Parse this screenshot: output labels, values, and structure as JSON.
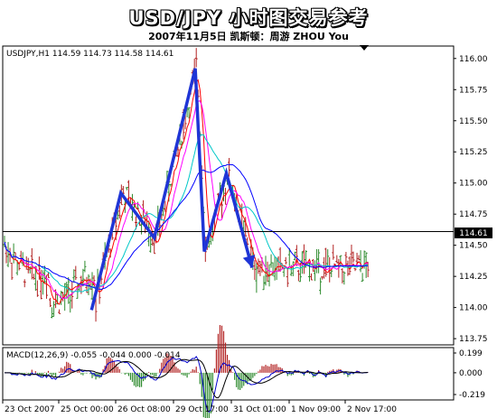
{
  "header": {
    "title": "USD/JPY 小时图交易参考",
    "subtitle": "2007年11月5日   凯斯顿：周游 ZHOU You"
  },
  "chart_data": {
    "type": "candlestick",
    "symbol_line": "USDJPY,H1  114.59 114.73 114.58 114.61",
    "current_price_label": "114.61",
    "current_price": 114.61,
    "ylim": [
      113.7,
      116.1
    ],
    "y_ticks": [
      "116.00",
      "115.75",
      "115.50",
      "115.25",
      "115.00",
      "114.75",
      "114.50",
      "114.25",
      "114.00",
      "113.75"
    ],
    "x_ticks": [
      "23 Oct 2007",
      "25 Oct 00:00",
      "26 Oct 08:00",
      "29 Oct 17:00",
      "31 Oct 01:00",
      "1 Nov 09:00",
      "2 Nov 17:00"
    ],
    "trend_arrow_path": [
      [
        0.197,
        113.98
      ],
      [
        0.262,
        114.92
      ],
      [
        0.336,
        114.56
      ],
      [
        0.427,
        115.92
      ],
      [
        0.447,
        114.45
      ],
      [
        0.496,
        115.08
      ],
      [
        0.553,
        114.32
      ]
    ],
    "macd": {
      "label": "MACD(12,26,9) -0.055 -0.044 0.000 -0.014",
      "y_ticks": [
        "0.199",
        "0.000",
        "-0.219"
      ]
    },
    "colors": {
      "up_bar": "#2e8b2e",
      "down_bar": "#b22222",
      "trend_arrow": "#1f35d6",
      "ma_red": "#ff0000",
      "ma_magenta": "#ff00ff",
      "ma_cyan": "#00c8c8",
      "ma_blue": "#0000ff",
      "macd_line": "#0000cd",
      "signal_line": "#000000"
    }
  }
}
